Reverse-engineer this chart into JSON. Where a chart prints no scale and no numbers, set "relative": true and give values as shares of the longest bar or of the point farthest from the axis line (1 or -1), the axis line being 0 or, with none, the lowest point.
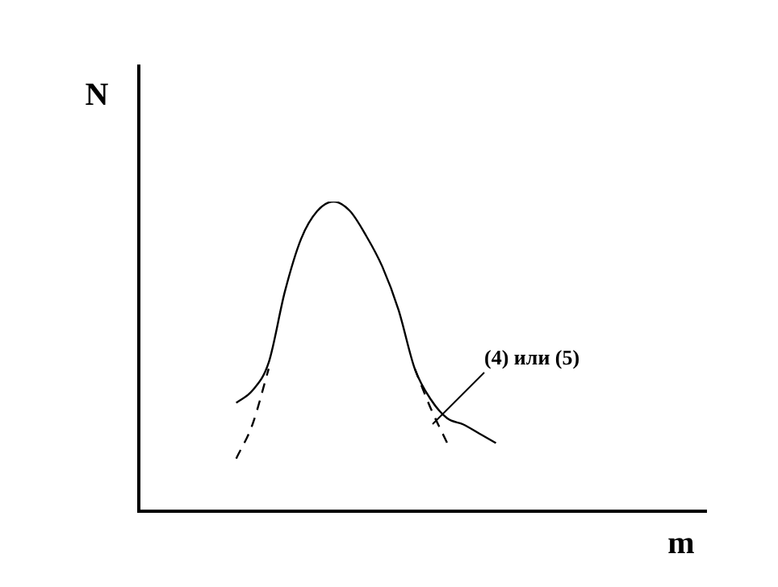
{
  "chart_data": {
    "type": "line",
    "relative": true,
    "xlabel": "m",
    "ylabel": "N",
    "marker": "none",
    "legend": false,
    "tick_labels": false,
    "annotations": [
      "(4) или (5)"
    ],
    "categories": [
      null,
      null,
      null,
      null,
      null,
      null,
      null,
      null,
      null,
      null,
      null,
      null,
      null,
      null,
      null,
      null,
      null,
      null,
      null,
      null,
      null,
      null,
      null,
      null,
      null,
      null,
      null,
      null,
      null,
      null,
      null,
      null,
      null,
      null,
      null,
      null
    ],
    "series": [
      {
        "color": "#000000",
        "line_style": "solid",
        "values": [
          null,
          null,
          null,
          null,
          null,
          null,
          0.35,
          0.39,
          0.48,
          0.71,
          0.88,
          0.97,
          1,
          0.97,
          0.89,
          0.79,
          0.65,
          0.46,
          0.36,
          0.3,
          0.28,
          0.25,
          0.22,
          null,
          null,
          null,
          null,
          null,
          null,
          null,
          null,
          null,
          null,
          null,
          null,
          null
        ]
      },
      {
        "color": "#000000",
        "line_style": "dashed",
        "values": [
          null,
          null,
          null,
          null,
          null,
          null,
          0.17,
          0.28,
          0.46,
          null,
          null,
          null,
          null,
          null,
          null,
          null,
          null,
          null,
          null,
          null,
          null,
          null,
          null,
          null,
          null,
          null,
          null,
          null,
          null,
          null,
          null,
          null,
          null,
          null,
          null,
          null
        ]
      },
      {
        "color": "#000000",
        "line_style": "dashed",
        "values": [
          null,
          null,
          null,
          null,
          null,
          null,
          null,
          null,
          null,
          null,
          null,
          null,
          null,
          null,
          null,
          null,
          null,
          0.46,
          0.33,
          0.22,
          null,
          null,
          null,
          null,
          null,
          null,
          null,
          null,
          null,
          null,
          null,
          null,
          null,
          null,
          null,
          null
        ]
      }
    ]
  }
}
